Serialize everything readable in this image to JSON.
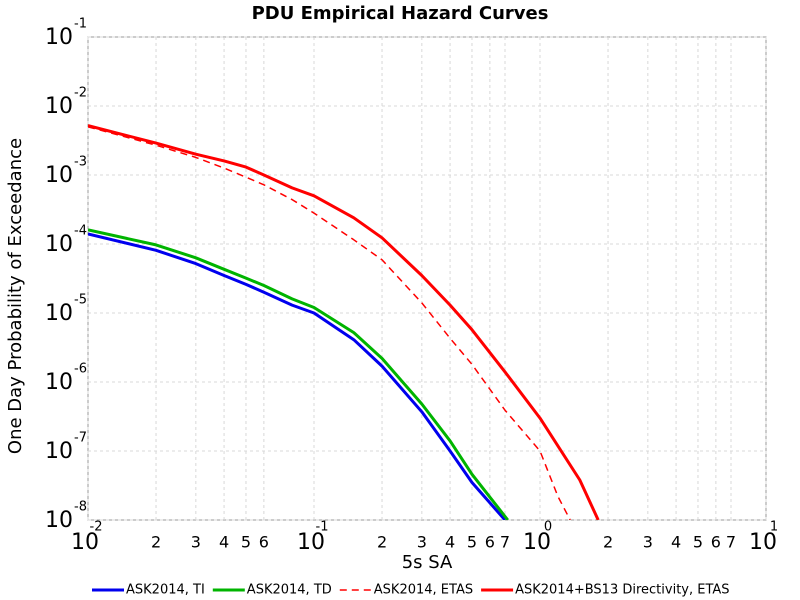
{
  "chart_data": {
    "type": "line",
    "title": "PDU Empirical Hazard Curves",
    "x_label": "5s SA",
    "y_label": "One Day Probability of Exceedance",
    "log_x": true,
    "log_y": true,
    "grid": true,
    "xlim": [
      0.01,
      10
    ],
    "ylim": [
      1e-08,
      0.1
    ],
    "xticks": [
      {
        "value": 0.01,
        "label": "10",
        "power": "-2"
      },
      {
        "value": 0.02,
        "label": "2"
      },
      {
        "value": 0.03,
        "label": "3"
      },
      {
        "value": 0.04,
        "label": "4"
      },
      {
        "value": 0.05,
        "label": "5"
      },
      {
        "value": 0.06,
        "label": "6"
      },
      {
        "value": 0.1,
        "label": "10",
        "power": "-1"
      },
      {
        "value": 0.2,
        "label": "2"
      },
      {
        "value": 0.3,
        "label": "3"
      },
      {
        "value": 0.4,
        "label": "4"
      },
      {
        "value": 0.5,
        "label": "5"
      },
      {
        "value": 0.6,
        "label": "6"
      },
      {
        "value": 0.7,
        "label": "7"
      },
      {
        "value": 1,
        "label": "10",
        "power": "0"
      },
      {
        "value": 2,
        "label": "2"
      },
      {
        "value": 3,
        "label": "3"
      },
      {
        "value": 4,
        "label": "4"
      },
      {
        "value": 5,
        "label": "5"
      },
      {
        "value": 6,
        "label": "6"
      },
      {
        "value": 7,
        "label": "7"
      },
      {
        "value": 10,
        "label": "10",
        "power": "1"
      }
    ],
    "yticks": [
      {
        "value": 1e-08,
        "label": "10",
        "power": "-8"
      },
      {
        "value": 1e-07,
        "label": "10",
        "power": "-7"
      },
      {
        "value": 1e-06,
        "label": "10",
        "power": "-6"
      },
      {
        "value": 1e-05,
        "label": "10",
        "power": "-5"
      },
      {
        "value": 0.0001,
        "label": "10",
        "power": "-4"
      },
      {
        "value": 0.001,
        "label": "10",
        "power": "-3"
      },
      {
        "value": 0.01,
        "label": "10",
        "power": "-2"
      },
      {
        "value": 0.1,
        "label": "10",
        "power": "-1"
      }
    ],
    "series": [
      {
        "name": "ASK2014, TI",
        "color": "#0000ee",
        "style": "solid",
        "x": [
          0.01,
          0.02,
          0.03,
          0.04,
          0.05,
          0.06,
          0.08,
          0.1,
          0.15,
          0.2,
          0.3,
          0.4,
          0.5,
          0.7
        ],
        "values": [
          0.00014,
          8.1e-05,
          5.2e-05,
          3.5e-05,
          2.6e-05,
          2e-05,
          1.3e-05,
          1e-05,
          4.1e-06,
          1.7e-06,
          3.7e-07,
          1e-07,
          3.5e-08,
          1e-08
        ]
      },
      {
        "name": "ASK2014, TD",
        "color": "#00b400",
        "style": "solid",
        "x": [
          0.01,
          0.02,
          0.03,
          0.04,
          0.05,
          0.06,
          0.08,
          0.1,
          0.15,
          0.2,
          0.3,
          0.4,
          0.5,
          0.72
        ],
        "values": [
          0.00016,
          9.7e-05,
          6.3e-05,
          4.3e-05,
          3.2e-05,
          2.5e-05,
          1.6e-05,
          1.2e-05,
          5.2e-06,
          2.2e-06,
          4.8e-07,
          1.4e-07,
          4.6e-08,
          1e-08
        ]
      },
      {
        "name": "ASK2014, ETAS",
        "color": "#ff0000",
        "style": "dashed",
        "x": [
          0.01,
          0.02,
          0.03,
          0.04,
          0.05,
          0.06,
          0.08,
          0.1,
          0.15,
          0.2,
          0.3,
          0.4,
          0.5,
          0.7,
          1,
          1.2,
          1.36
        ],
        "values": [
          0.005,
          0.0027,
          0.0018,
          0.00126,
          0.00093,
          0.00072,
          0.00044,
          0.00028,
          0.000115,
          5.9e-05,
          1.4e-05,
          4.3e-06,
          1.8e-06,
          3.9e-07,
          1e-07,
          2.2e-08,
          1e-08
        ]
      },
      {
        "name": "ASK2014+BS13 Directivity, ETAS",
        "color": "#ff0000",
        "style": "solid",
        "x": [
          0.01,
          0.02,
          0.03,
          0.04,
          0.05,
          0.06,
          0.08,
          0.1,
          0.15,
          0.2,
          0.3,
          0.4,
          0.5,
          0.7,
          1,
          1.5,
          1.81
        ],
        "values": [
          0.0052,
          0.0029,
          0.002,
          0.0016,
          0.0013,
          0.001,
          0.00065,
          0.0005,
          0.00024,
          0.000123,
          3.5e-05,
          1.3e-05,
          5.7e-06,
          1.4e-06,
          3e-07,
          3.8e-08,
          1e-08
        ]
      }
    ]
  }
}
